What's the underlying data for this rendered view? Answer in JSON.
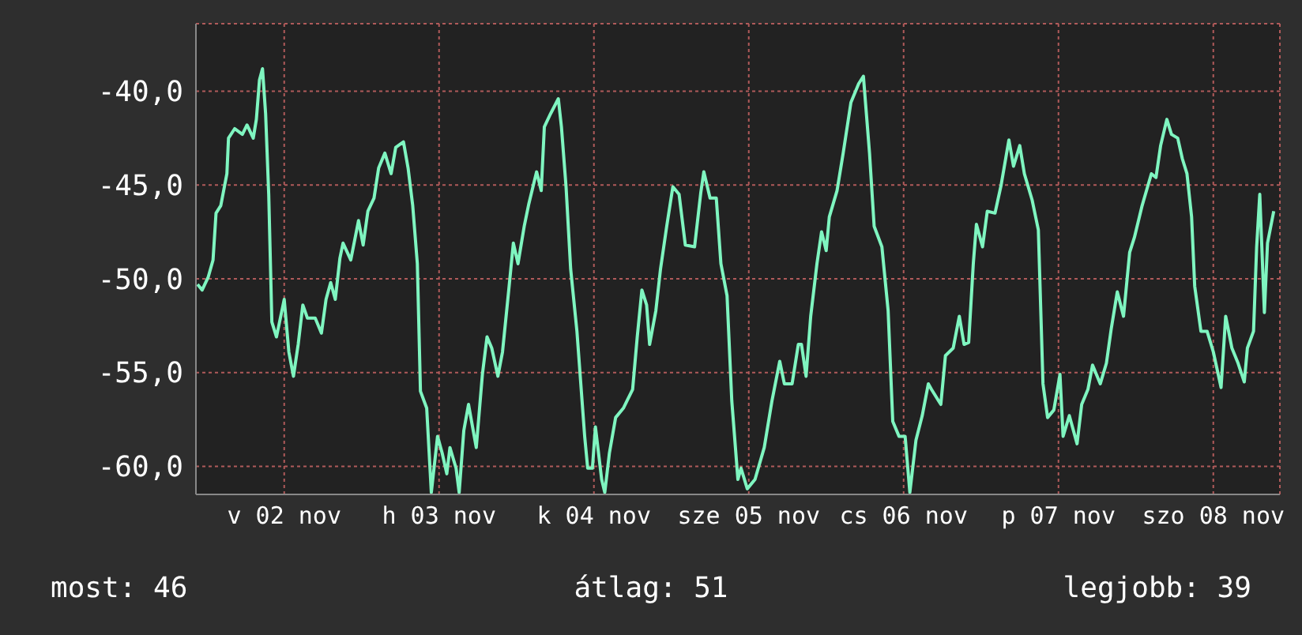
{
  "chart_data": {
    "type": "line",
    "x": [
      "--11-01T10:34",
      "--11-01T11:17",
      "--11-01T12:14",
      "--11-01T12:58",
      "--11-01T13:26",
      "--11-01T14:10",
      "--11-01T15:07",
      "--11-01T15:22",
      "--11-01T16:19",
      "--11-01T17:31",
      "--11-01T18:14",
      "--11-01T19:12",
      "--11-01T19:41",
      "--11-01T20:10",
      "--11-01T20:38",
      "--11-01T21:07",
      "--11-01T21:36",
      "--11-01T22:05",
      "--11-01T22:48",
      "--11-02T00:00",
      "--11-02T00:43",
      "--11-02T01:26",
      "--11-02T02:10",
      "--11-02T02:53",
      "--11-02T03:36",
      "--11-02T04:48",
      "--11-02T05:46",
      "--11-02T06:29",
      "--11-02T07:12",
      "--11-02T07:55",
      "--11-02T08:38",
      "--11-02T09:07",
      "--11-02T10:19",
      "--11-02T11:31",
      "--11-02T12:14",
      "--11-02T12:58",
      "--11-02T13:55",
      "--11-02T14:38",
      "--11-02T15:36",
      "--11-02T16:34",
      "--11-02T17:17",
      "--11-02T18:29",
      "--11-02T19:12",
      "--11-02T19:55",
      "--11-02T20:38",
      "--11-02T21:07",
      "--11-02T22:05",
      "--11-02T22:48",
      "--11-02T23:46",
      "--11-03T00:29",
      "--11-03T01:12",
      "--11-03T01:41",
      "--11-03T02:38",
      "--11-03T03:07",
      "--11-03T03:50",
      "--11-03T04:34",
      "--11-03T05:46",
      "--11-03T06:43",
      "--11-03T07:26",
      "--11-03T08:10",
      "--11-03T09:07",
      "--11-03T09:50",
      "--11-03T10:48",
      "--11-03T11:31",
      "--11-03T12:14",
      "--11-03T13:12",
      "--11-03T13:55",
      "--11-03T15:07",
      "--11-03T15:50",
      "--11-03T16:19",
      "--11-03T17:17",
      "--11-03T18:29",
      "--11-03T18:58",
      "--11-03T19:41",
      "--11-03T20:24",
      "--11-03T21:22",
      "--11-03T22:34",
      "--11-03T23:02",
      "--11-03T23:46",
      "--11-04T00:14",
      "--11-04T01:12",
      "--11-04T01:41",
      "--11-04T02:24",
      "--11-04T03:22",
      "--11-04T04:34",
      "--11-04T06:00",
      "--11-04T06:43",
      "--11-04T07:26",
      "--11-04T08:10",
      "--11-04T08:38",
      "--11-04T09:36",
      "--11-04T10:19",
      "--11-04T11:17",
      "--11-04T12:14",
      "--11-04T13:12",
      "--11-04T14:10",
      "--11-04T15:36",
      "--11-04T16:34",
      "--11-04T17:02",
      "--11-04T18:00",
      "--11-04T18:58",
      "--11-04T19:41",
      "--11-04T20:38",
      "--11-04T21:22",
      "--11-04T22:19",
      "--11-04T22:48",
      "--11-04T23:46",
      "--11-05T00:58",
      "--11-05T02:24",
      "--11-05T03:36",
      "--11-05T04:48",
      "--11-05T05:31",
      "--11-05T06:43",
      "--11-05T07:41",
      "--11-05T08:10",
      "--11-05T08:53",
      "--11-05T09:36",
      "--11-05T10:34",
      "--11-05T11:17",
      "--11-05T12:00",
      "--11-05T12:29",
      "--11-05T13:41",
      "--11-05T14:38",
      "--11-05T15:50",
      "--11-05T17:02",
      "--11-05T17:46",
      "--11-05T18:43",
      "--11-05T19:26",
      "--11-05T20:38",
      "--11-05T21:36",
      "--11-05T22:19",
      "--11-05T23:17",
      "--11-06T00:14",
      "--11-06T00:58",
      "--11-06T01:55",
      "--11-06T02:53",
      "--11-06T03:50",
      "--11-06T04:19",
      "--11-06T05:46",
      "--11-06T06:29",
      "--11-06T07:41",
      "--11-06T08:38",
      "--11-06T09:22",
      "--11-06T10:05",
      "--11-06T10:48",
      "--11-06T11:17",
      "--11-06T12:14",
      "--11-06T12:58",
      "--11-06T14:10",
      "--11-06T15:07",
      "--11-06T16:19",
      "--11-06T17:02",
      "--11-06T18:00",
      "--11-06T18:43",
      "--11-06T19:55",
      "--11-06T20:53",
      "--11-06T21:36",
      "--11-06T22:19",
      "--11-06T23:17",
      "--11-07T00:14",
      "--11-07T00:43",
      "--11-07T01:41",
      "--11-07T02:53",
      "--11-07T03:36",
      "--11-07T04:34",
      "--11-07T05:17",
      "--11-07T06:29",
      "--11-07T07:26",
      "--11-07T08:10",
      "--11-07T09:07",
      "--11-07T10:05",
      "--11-07T11:02",
      "--11-07T11:46",
      "--11-07T12:58",
      "--11-07T14:24",
      "--11-07T15:07",
      "--11-07T15:50",
      "--11-07T16:48",
      "--11-07T17:31",
      "--11-07T18:29",
      "--11-07T19:12",
      "--11-07T19:55",
      "--11-07T20:38",
      "--11-07T21:07",
      "--11-07T22:05",
      "--11-07T23:02",
      "--11-08T00:00",
      "--11-08T01:12",
      "--11-08T01:55",
      "--11-08T02:53",
      "--11-08T03:50",
      "--11-08T04:48",
      "--11-08T05:17",
      "--11-08T06:14",
      "--11-08T06:43",
      "--11-08T07:12",
      "--11-08T07:55",
      "--11-08T08:24",
      "--11-08T09:22"
    ],
    "series": [
      {
        "color": "#7ff5c0",
        "values": [
          -50.3,
          -50.6,
          -49.9,
          -49.0,
          -46.5,
          -46.1,
          -44.4,
          -42.5,
          -42.0,
          -42.3,
          -41.8,
          -42.5,
          -41.5,
          -39.4,
          -38.8,
          -41.2,
          -45.5,
          -52.3,
          -53.1,
          -51.1,
          -53.9,
          -55.2,
          -53.5,
          -51.4,
          -52.1,
          -52.1,
          -52.9,
          -51.1,
          -50.2,
          -51.1,
          -48.9,
          -48.1,
          -49.0,
          -46.9,
          -48.2,
          -46.4,
          -45.7,
          -44.1,
          -43.3,
          -44.4,
          -43.0,
          -42.7,
          -44.1,
          -46.1,
          -49.2,
          -56.0,
          -56.9,
          -61.4,
          -58.4,
          -59.3,
          -60.4,
          -59.0,
          -60.1,
          -61.4,
          -58.1,
          -56.7,
          -59.0,
          -55.1,
          -53.1,
          -53.7,
          -55.2,
          -53.9,
          -50.6,
          -48.1,
          -49.2,
          -47.2,
          -46.0,
          -44.3,
          -45.3,
          -41.9,
          -41.2,
          -40.4,
          -41.9,
          -45.1,
          -49.5,
          -52.8,
          -58.4,
          -60.1,
          -60.1,
          -57.9,
          -60.7,
          -61.4,
          -59.3,
          -57.4,
          -56.9,
          -55.9,
          -53.1,
          -50.6,
          -51.4,
          -53.5,
          -51.7,
          -49.5,
          -47.2,
          -45.1,
          -45.5,
          -48.2,
          -48.3,
          -45.4,
          -44.3,
          -45.7,
          -45.7,
          -49.2,
          -50.9,
          -56.5,
          -60.7,
          -60.1,
          -61.2,
          -60.7,
          -59.0,
          -56.5,
          -54.4,
          -55.6,
          -55.6,
          -53.5,
          -53.5,
          -55.2,
          -52.0,
          -49.2,
          -47.5,
          -48.5,
          -46.7,
          -45.3,
          -43.3,
          -40.6,
          -39.6,
          -39.2,
          -43.3,
          -47.2,
          -48.3,
          -51.7,
          -57.6,
          -58.4,
          -58.4,
          -61.4,
          -58.6,
          -57.3,
          -55.6,
          -55.9,
          -56.7,
          -54.1,
          -53.7,
          -52.0,
          -53.5,
          -53.4,
          -49.2,
          -47.1,
          -48.3,
          -46.4,
          -46.5,
          -45.0,
          -42.6,
          -44.0,
          -42.9,
          -44.4,
          -45.8,
          -47.4,
          -55.6,
          -57.4,
          -57.0,
          -55.1,
          -58.4,
          -57.3,
          -58.8,
          -56.7,
          -55.9,
          -54.6,
          -55.6,
          -54.5,
          -52.7,
          -50.7,
          -52.0,
          -48.6,
          -47.8,
          -46.1,
          -44.4,
          -44.6,
          -42.9,
          -41.5,
          -42.3,
          -42.5,
          -43.6,
          -44.4,
          -46.7,
          -50.4,
          -52.8,
          -52.8,
          -53.9,
          -55.8,
          -52.0,
          -53.7,
          -54.5,
          -55.5,
          -53.7,
          -52.8,
          -48.3,
          -45.5,
          -51.8,
          -48.1,
          -46.4
        ]
      }
    ],
    "xlim": [
      "--11-01T10:19",
      "--11-08T10:19"
    ],
    "xticks": [
      {
        "value": "--11-02",
        "label": "v 02 nov"
      },
      {
        "value": "--11-03",
        "label": "h 03 nov"
      },
      {
        "value": "--11-04",
        "label": "k 04 nov"
      },
      {
        "value": "--11-05",
        "label": "sze 05 nov"
      },
      {
        "value": "--11-06",
        "label": "cs 06 nov"
      },
      {
        "value": "--11-07",
        "label": "p 07 nov"
      },
      {
        "value": "--11-08",
        "label": "szo 08 nov"
      }
    ],
    "ylim": [
      -61.5,
      -36.4
    ],
    "yticks": [
      {
        "value": -60,
        "label": "-60,0"
      },
      {
        "value": -55,
        "label": "-55,0"
      },
      {
        "value": -50,
        "label": "-50,0"
      },
      {
        "value": -45,
        "label": "-45,0"
      },
      {
        "value": -40,
        "label": "-40,0"
      }
    ],
    "grid": true,
    "marker": "none",
    "line_style": "solid",
    "annotations": [
      "most: 46",
      "átlag: 51",
      "legjobb: 39"
    ]
  }
}
